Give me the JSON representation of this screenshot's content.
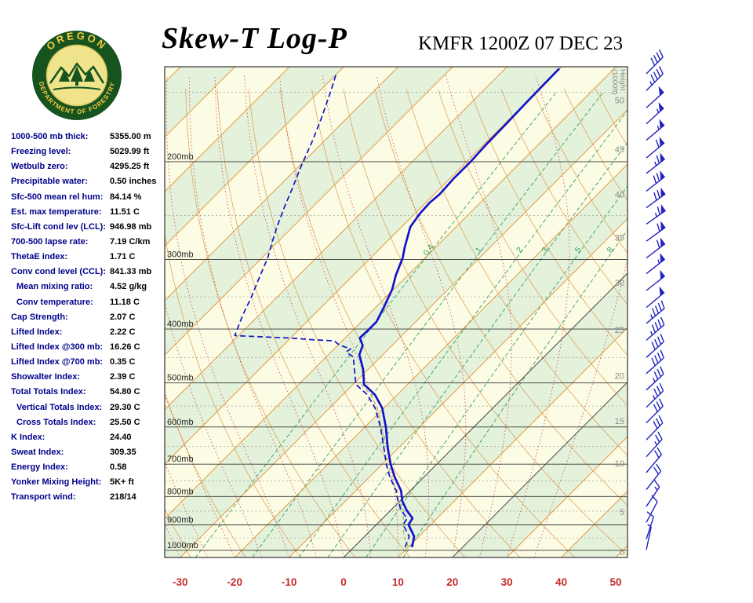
{
  "header": {
    "title": "Skew-T Log-P",
    "station": "KMFR 1200Z 07 DEC 23"
  },
  "logo": {
    "top_text": "OREGON",
    "bottom_text": "DEPARTMENT OF FORESTRY"
  },
  "indices": [
    {
      "label": "1000-500 mb thick:",
      "value": "5355.00 m"
    },
    {
      "label": "Freezing level:",
      "value": "5029.99 ft"
    },
    {
      "label": "Wetbulb zero:",
      "value": "4295.25 ft"
    },
    {
      "label": "Precipitable water:",
      "value": "0.50 inches"
    },
    {
      "label": "Sfc-500 mean rel hum:",
      "value": "84.14 %"
    },
    {
      "label": "Est. max temperature:",
      "value": "11.51 C"
    },
    {
      "label": "Sfc-Lift cond lev (LCL):",
      "value": "946.98 mb"
    },
    {
      "label": "700-500 lapse rate:",
      "value": "7.19 C/km"
    },
    {
      "label": "ThetaE index:",
      "value": "1.71 C"
    },
    {
      "label": "Conv cond level (CCL):",
      "value": "841.33 mb"
    },
    {
      "label": "Mean mixing ratio:",
      "value": "4.52 g/kg",
      "indent": true
    },
    {
      "label": "Conv temperature:",
      "value": "11.18 C",
      "indent": true
    },
    {
      "label": "Cap Strength:",
      "value": "2.07 C"
    },
    {
      "label": "Lifted Index:",
      "value": "2.22 C"
    },
    {
      "label": "Lifted Index @300 mb:",
      "value": "16.26 C"
    },
    {
      "label": "Lifted Index @700 mb:",
      "value": "0.35 C"
    },
    {
      "label": "Showalter Index:",
      "value": "2.39 C"
    },
    {
      "label": "Total Totals Index:",
      "value": "54.80 C"
    },
    {
      "label": "Vertical Totals Index:",
      "value": "29.30 C",
      "indent": true
    },
    {
      "label": "Cross Totals Index:",
      "value": "25.50 C",
      "indent": true
    },
    {
      "label": "K Index:",
      "value": "24.40"
    },
    {
      "label": "Sweat Index:",
      "value": "309.35"
    },
    {
      "label": "Energy Index:",
      "value": "0.58"
    },
    {
      "label": "Yonker Mixing Height:",
      "value": "5K+ ft"
    },
    {
      "label": "Transport wind:",
      "value": "218/14"
    }
  ],
  "chart_data": {
    "type": "line",
    "title": "Skew-T Log-P",
    "subtitle": "KMFR 1200Z 07 DEC 23",
    "pressure_range_mb": [
      135,
      1030
    ],
    "x_axis": {
      "units": "C",
      "ticks": [
        {
          "t": -30,
          "label": "-30"
        },
        {
          "t": -20,
          "label": "-20"
        },
        {
          "t": -10,
          "label": "-10"
        },
        {
          "t": 0,
          "label": "0"
        },
        {
          "t": 10,
          "label": "10"
        },
        {
          "t": 20,
          "label": "20"
        },
        {
          "t": 30,
          "label": "30"
        },
        {
          "t": 40,
          "label": "40"
        },
        {
          "t": 50,
          "label": "50"
        }
      ]
    },
    "pressure_axis": {
      "labels": [
        {
          "p": 200,
          "label": "200mb"
        },
        {
          "p": 300,
          "label": "300mb"
        },
        {
          "p": 400,
          "label": "400mb"
        },
        {
          "p": 500,
          "label": "500mb"
        },
        {
          "p": 600,
          "label": "600mb"
        },
        {
          "p": 700,
          "label": "700mb"
        },
        {
          "p": 800,
          "label": "800mb"
        },
        {
          "p": 900,
          "label": "900mb"
        },
        {
          "p": 1000,
          "label": "1000mb"
        }
      ],
      "minor_mb": [
        150,
        250,
        350,
        450,
        550,
        650,
        750,
        850,
        950
      ]
    },
    "height_axis": {
      "title_line1": "Height",
      "title_line2": "(1000ft)",
      "ticks": [
        {
          "kft": 50,
          "label": "50",
          "p": 155
        },
        {
          "kft": 45,
          "label": "45",
          "p": 190
        },
        {
          "kft": 40,
          "label": "40",
          "p": 229
        },
        {
          "kft": 35,
          "label": "35",
          "p": 274
        },
        {
          "kft": 30,
          "label": "30",
          "p": 330
        },
        {
          "kft": 25,
          "label": "25",
          "p": 401
        },
        {
          "kft": 20,
          "label": "20",
          "p": 485
        },
        {
          "kft": 15,
          "label": "15",
          "p": 585
        },
        {
          "kft": 10,
          "label": "10",
          "p": 697
        },
        {
          "kft": 5,
          "label": "5",
          "p": 853
        },
        {
          "kft": 0,
          "label": "0",
          "p": 1023
        }
      ]
    },
    "mixing_ratio_lines": [
      {
        "r": 0.4,
        "label": "0.4"
      },
      {
        "r": 1,
        "label": "1"
      },
      {
        "r": 2,
        "label": "2"
      },
      {
        "r": 3,
        "label": "3"
      },
      {
        "r": 5,
        "label": "5"
      },
      {
        "r": 8,
        "label": "8"
      }
    ],
    "isotherms": {
      "step_c": 10,
      "dark_c": [
        0,
        20
      ]
    },
    "series": {
      "temperature": [
        [
          987,
          10.7
        ],
        [
          944,
          9.1
        ],
        [
          899,
          5.9
        ],
        [
          876,
          5.5
        ],
        [
          848,
          3.0
        ],
        [
          815,
          0.4
        ],
        [
          781,
          -1.7
        ],
        [
          739,
          -5.3
        ],
        [
          701,
          -8.4
        ],
        [
          653,
          -12.1
        ],
        [
          602,
          -16.0
        ],
        [
          555,
          -20.3
        ],
        [
          525,
          -24.1
        ],
        [
          503,
          -28.0
        ],
        [
          472,
          -31.0
        ],
        [
          445,
          -34.3
        ],
        [
          428,
          -35.4
        ],
        [
          415,
          -37.3
        ],
        [
          402,
          -37.2
        ],
        [
          388,
          -37.2
        ],
        [
          364,
          -38.6
        ],
        [
          339,
          -40.3
        ],
        [
          320,
          -42.2
        ],
        [
          298,
          -44.1
        ],
        [
          285,
          -45.7
        ],
        [
          262,
          -48.4
        ],
        [
          248,
          -49.1
        ],
        [
          237,
          -49.3
        ],
        [
          229,
          -49.0
        ],
        [
          215,
          -49.3
        ],
        [
          200,
          -49.3
        ],
        [
          185,
          -49.6
        ],
        [
          171,
          -49.7
        ],
        [
          158,
          -49.9
        ],
        [
          147,
          -50.0
        ],
        [
          136,
          -50.1
        ]
      ],
      "dewpoint": [
        [
          987,
          9.4
        ],
        [
          944,
          8.2
        ],
        [
          899,
          4.9
        ],
        [
          876,
          4.5
        ],
        [
          848,
          2.0
        ],
        [
          815,
          -0.4
        ],
        [
          781,
          -2.6
        ],
        [
          739,
          -6.2
        ],
        [
          701,
          -9.2
        ],
        [
          653,
          -12.8
        ],
        [
          602,
          -17.0
        ],
        [
          555,
          -21.6
        ],
        [
          525,
          -25.5
        ],
        [
          503,
          -29.5
        ],
        [
          472,
          -32.6
        ],
        [
          449,
          -35.0
        ],
        [
          440,
          -37.2
        ],
        [
          434,
          -37.0
        ],
        [
          428,
          -39.6
        ],
        [
          420,
          -41.5
        ],
        [
          418,
          -45.8
        ],
        [
          415,
          -50.4
        ],
        [
          413,
          -55.8
        ],
        [
          411,
          -60.7
        ],
        [
          376,
          -63.1
        ],
        [
          352,
          -64.6
        ],
        [
          325,
          -66.7
        ],
        [
          298,
          -68.9
        ],
        [
          279,
          -71.0
        ],
        [
          262,
          -72.9
        ],
        [
          242,
          -75.1
        ],
        [
          223,
          -77.2
        ],
        [
          203,
          -79.7
        ],
        [
          184,
          -82.1
        ],
        [
          167,
          -84.7
        ],
        [
          151,
          -87.6
        ],
        [
          139,
          -90.1
        ]
      ],
      "parcel": [
        [
          987,
          10.0
        ],
        [
          940,
          7.0
        ],
        [
          900,
          5.0
        ],
        [
          848,
          2.4
        ],
        [
          815,
          -0.3
        ],
        [
          781,
          -2.4
        ],
        [
          739,
          -6.0
        ],
        [
          701,
          -9.0
        ],
        [
          653,
          -12.8
        ],
        [
          602,
          -16.8
        ],
        [
          555,
          -21.2
        ],
        [
          525,
          -24.9
        ],
        [
          503,
          -28.5
        ]
      ]
    },
    "wind_barbs": [
      {
        "p": 139,
        "dir": 225,
        "spd": 40
      },
      {
        "p": 149,
        "dir": 225,
        "spd": 45
      },
      {
        "p": 160,
        "dir": 228,
        "spd": 50
      },
      {
        "p": 171,
        "dir": 228,
        "spd": 55
      },
      {
        "p": 183,
        "dir": 230,
        "spd": 55
      },
      {
        "p": 197,
        "dir": 230,
        "spd": 60
      },
      {
        "p": 210,
        "dir": 232,
        "spd": 65
      },
      {
        "p": 226,
        "dir": 232,
        "spd": 70
      },
      {
        "p": 242,
        "dir": 234,
        "spd": 70
      },
      {
        "p": 259,
        "dir": 235,
        "spd": 65
      },
      {
        "p": 278,
        "dir": 234,
        "spd": 60
      },
      {
        "p": 298,
        "dir": 233,
        "spd": 60
      },
      {
        "p": 318,
        "dir": 232,
        "spd": 55
      },
      {
        "p": 341,
        "dir": 232,
        "spd": 50
      },
      {
        "p": 366,
        "dir": 230,
        "spd": 50
      },
      {
        "p": 391,
        "dir": 230,
        "spd": 45
      },
      {
        "p": 419,
        "dir": 229,
        "spd": 45
      },
      {
        "p": 450,
        "dir": 228,
        "spd": 40
      },
      {
        "p": 481,
        "dir": 228,
        "spd": 40
      },
      {
        "p": 515,
        "dir": 227,
        "spd": 35
      },
      {
        "p": 553,
        "dir": 226,
        "spd": 35
      },
      {
        "p": 590,
        "dir": 225,
        "spd": 30
      },
      {
        "p": 633,
        "dir": 224,
        "spd": 30
      },
      {
        "p": 679,
        "dir": 222,
        "spd": 25
      },
      {
        "p": 725,
        "dir": 220,
        "spd": 20
      },
      {
        "p": 778,
        "dir": 218,
        "spd": 20
      },
      {
        "p": 834,
        "dir": 214,
        "spd": 15
      },
      {
        "p": 891,
        "dir": 208,
        "spd": 10
      },
      {
        "p": 955,
        "dir": 198,
        "spd": 10
      },
      {
        "p": 998,
        "dir": 192,
        "spd": 5
      }
    ],
    "colors": {
      "temperature": "#1414C8",
      "dewpoint": "#1414C8",
      "parcel": "#B4B86A",
      "isotherm": "#E29B44",
      "dry_adiabat": "#DC9A50",
      "moist_adiabat": "#D25A5C",
      "mixing_ratio": "#2FA364",
      "band_green": "#E4F1DB",
      "band_cream": "#FCFBE3",
      "pressure_line": "#3A3A3A",
      "minor_line": "#909090",
      "dark_isotherm": "#4A4A4A",
      "axis_red": "#C42B2B",
      "barb": "#2121BE",
      "height_label": "#8C8C8C",
      "pressure_label": "#222222",
      "border": "#333333"
    }
  }
}
